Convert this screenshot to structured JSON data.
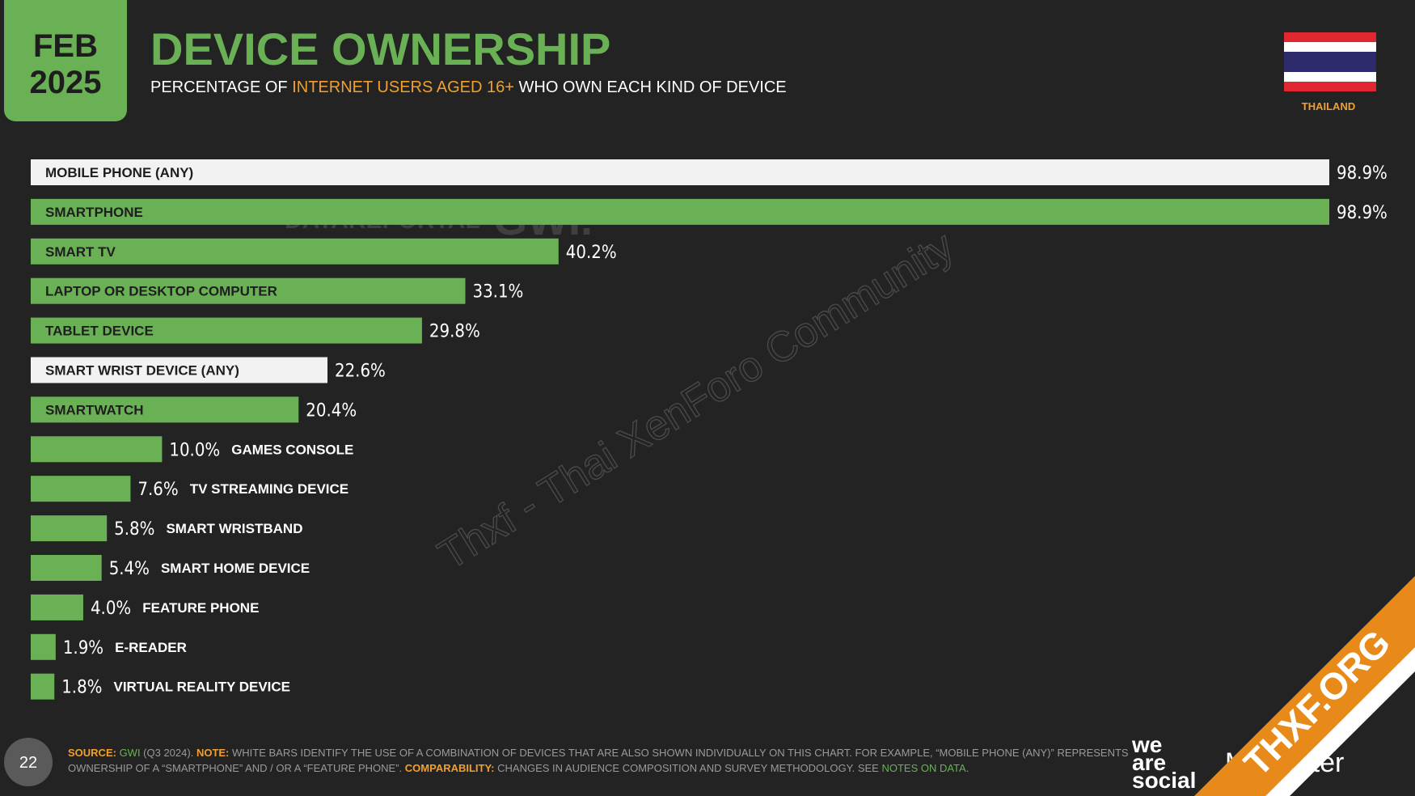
{
  "header": {
    "month": "FEB",
    "year": "2025",
    "title": "DEVICE OWNERSHIP",
    "subtitle": [
      "PERCENTAGE OF ",
      "INTERNET USERS AGED 16+",
      " WHO OWN EACH KIND OF DEVICE"
    ],
    "country": "THAILAND"
  },
  "chart_data": {
    "type": "bar",
    "orientation": "horizontal",
    "categories": [
      "MOBILE PHONE (ANY)",
      "SMARTPHONE",
      "SMART TV",
      "LAPTOP OR DESKTOP COMPUTER",
      "TABLET DEVICE",
      "SMART WRIST DEVICE (ANY)",
      "SMARTWATCH",
      "GAMES CONSOLE",
      "TV STREAMING DEVICE",
      "SMART WRISTBAND",
      "SMART HOME DEVICE",
      "FEATURE PHONE",
      "E-READER",
      "VIRTUAL REALITY DEVICE"
    ],
    "values": [
      98.9,
      98.9,
      40.2,
      33.1,
      29.8,
      22.6,
      20.4,
      10.0,
      7.6,
      5.8,
      5.4,
      4.0,
      1.9,
      1.8
    ],
    "value_labels": [
      "98.9%",
      "98.9%",
      "40.2%",
      "33.1%",
      "29.8%",
      "22.6%",
      "20.4%",
      "10.0%",
      "7.6%",
      "5.8%",
      "5.4%",
      "4.0%",
      "1.9%",
      "1.8%"
    ],
    "colors": [
      "#f2f2f2",
      "#6ab155",
      "#6ab155",
      "#6ab155",
      "#6ab155",
      "#f2f2f2",
      "#6ab155",
      "#6ab155",
      "#6ab155",
      "#6ab155",
      "#6ab155",
      "#6ab155",
      "#6ab155",
      "#6ab155"
    ]
  },
  "footer": {
    "line1": [
      "SOURCE:",
      " GWI",
      " (Q3 2024). ",
      "NOTE:",
      " WHITE BARS IDENTIFY THE USE OF A COMBINATION OF DEVICES THAT ARE ALSO SHOWN INDIVIDUALLY ON THIS CHART. FOR EXAMPLE, “MOBILE PHONE (ANY)” REPRESENTS"
    ],
    "line2": [
      "OWNERSHIP OF A “SMARTPHONE” AND / OR A “FEATURE PHONE”. ",
      "COMPARABILITY:",
      " CHANGES IN AUDIENCE COMPOSITION AND SURVEY METHODOLOGY. SEE ",
      "NOTES ON DATA",
      "."
    ],
    "page": "22",
    "logo1": [
      "we",
      "are",
      "social"
    ],
    "logo2": "Meltwater"
  },
  "watermarks": {
    "brand1": "DATAREPORTAL",
    "brand2": "GWI.",
    "overlay": "Thxf - Thai XenForo Community",
    "corner": "THXF.ORG"
  }
}
